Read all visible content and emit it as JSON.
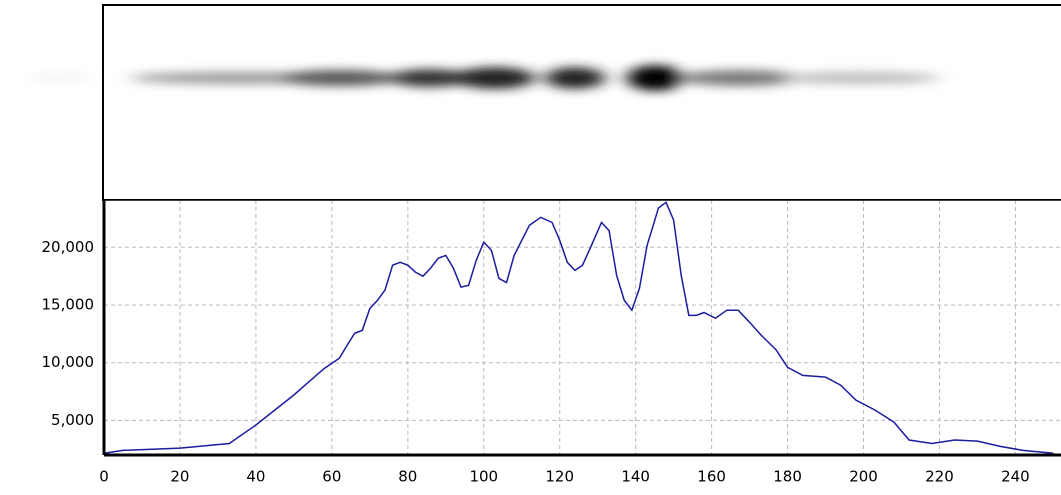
{
  "chart_data": {
    "type": "line",
    "x": [
      0,
      5,
      20,
      25,
      33,
      40,
      45,
      50,
      55,
      58,
      62,
      64,
      66,
      68,
      70,
      72,
      74,
      76,
      78,
      80,
      82,
      84,
      86,
      88,
      90,
      92,
      94,
      96,
      98,
      100,
      102,
      104,
      106,
      108,
      112,
      115,
      118,
      120,
      122,
      124,
      126,
      128,
      131,
      133,
      135,
      137,
      139,
      141,
      143,
      146,
      148,
      150,
      152,
      154,
      156,
      158,
      161,
      164,
      167,
      170,
      173,
      177,
      180,
      184,
      190,
      194,
      198,
      203,
      208,
      212,
      218,
      224,
      230,
      236,
      242,
      250
    ],
    "series": [
      {
        "color": "#1c1ca0",
        "values": [
          2150,
          2400,
          2600,
          2750,
          3000,
          4600,
          5900,
          7200,
          8650,
          9500,
          10400,
          11500,
          12550,
          12800,
          14700,
          15400,
          16300,
          18450,
          18700,
          18450,
          17850,
          17500,
          18200,
          19050,
          19300,
          18200,
          16550,
          16700,
          18850,
          20450,
          19750,
          17300,
          16950,
          19300,
          21900,
          22600,
          22150,
          20600,
          18700,
          18000,
          18450,
          19900,
          22150,
          21450,
          17550,
          15400,
          14550,
          16450,
          20150,
          23400,
          23900,
          22350,
          17550,
          14100,
          14100,
          14350,
          13850,
          14550,
          14550,
          13500,
          12400,
          11100,
          9600,
          8900,
          8750,
          8050,
          6750,
          5900,
          4850,
          3300,
          3000,
          3300,
          3200,
          2750,
          2400,
          2150
        ]
      }
    ],
    "xlim": [
      0,
      252
    ],
    "ylim": [
      2000,
      24100
    ],
    "xticks": [
      0,
      20,
      40,
      60,
      80,
      100,
      120,
      140,
      160,
      180,
      200,
      220,
      240
    ],
    "yticks": [
      {
        "value": 5000,
        "label": "5,000"
      },
      {
        "value": 10000,
        "label": "10,000"
      },
      {
        "value": 15000,
        "label": "15,000"
      },
      {
        "value": 20000,
        "label": "20,000"
      }
    ],
    "grid": true
  }
}
